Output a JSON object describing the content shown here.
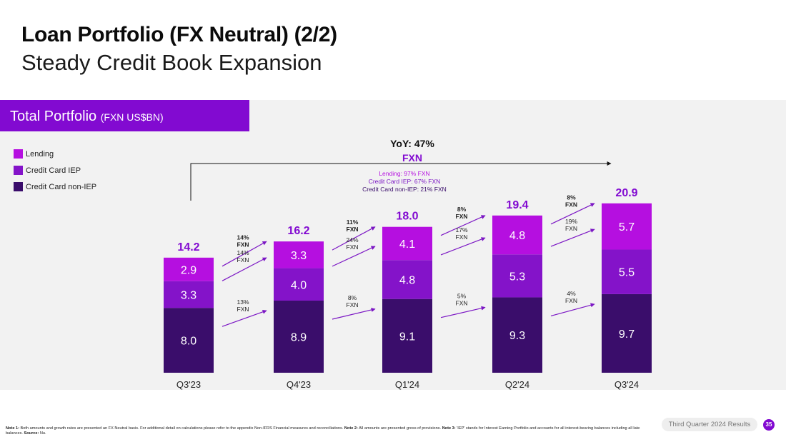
{
  "header": {
    "title": "Loan Portfolio (FX Neutral) (2/2)",
    "subtitle": "Steady Credit Book Expansion"
  },
  "panel": {
    "title": "Total Portfolio",
    "title_unit": "(FXN US$BN)"
  },
  "colors": {
    "brand": "#820ad1",
    "lending": "#b50fe0",
    "credit_card_iep": "#8413c9",
    "credit_card_non_iep": "#3a0d6b",
    "total_label": "#820ad1"
  },
  "legend": [
    {
      "label": "Lending",
      "color": "#b50fe0"
    },
    {
      "label": "Credit Card IEP",
      "color": "#8413c9"
    },
    {
      "label": "Credit Card non-IEP",
      "color": "#3a0d6b"
    }
  ],
  "chart_data": {
    "type": "bar",
    "stacked": true,
    "title": "Total Portfolio (FXN US$BN)",
    "categories": [
      "Q3'23",
      "Q4'23",
      "Q1'24",
      "Q2'24",
      "Q3'24"
    ],
    "series": [
      {
        "name": "Credit Card non-IEP",
        "values": [
          8.0,
          8.9,
          9.1,
          9.3,
          9.7
        ]
      },
      {
        "name": "Credit Card IEP",
        "values": [
          3.3,
          4.0,
          4.8,
          5.3,
          5.5
        ]
      },
      {
        "name": "Lending",
        "values": [
          2.9,
          3.3,
          4.1,
          4.8,
          5.7
        ]
      }
    ],
    "totals": [
      "14.2",
      "16.2",
      "18.0",
      "19.4",
      "20.9"
    ],
    "segment_labels": [
      [
        "8.0",
        "3.3",
        "2.9"
      ],
      [
        "8.9",
        "4.0",
        "3.3"
      ],
      [
        "9.1",
        "4.8",
        "4.1"
      ],
      [
        "9.3",
        "5.3",
        "4.8"
      ],
      [
        "9.7",
        "5.5",
        "5.7"
      ]
    ],
    "growth": [
      {
        "total": [
          "14%",
          "FXN"
        ],
        "lending": [
          "14%",
          "FXN"
        ],
        "iep": null,
        "non_iep": [
          "13%",
          "FXN"
        ]
      },
      {
        "total": [
          "11%",
          "FXN"
        ],
        "lending": [
          "24%",
          "FXN"
        ],
        "iep": null,
        "non_iep": [
          "8%",
          "FXN"
        ]
      },
      {
        "total": [
          "8%",
          "FXN"
        ],
        "lending": [
          "17%",
          "FXN"
        ],
        "iep": null,
        "non_iep": [
          "5%",
          "FXN"
        ]
      },
      {
        "total": [
          "8%",
          "FXN"
        ],
        "lending": [
          "19%",
          "FXN"
        ],
        "iep": null,
        "non_iep": [
          "4%",
          "FXN"
        ]
      }
    ],
    "yoy": {
      "label": "YoY: 47%",
      "sub": "FXN",
      "details": [
        "Lending: 97% FXN",
        "Credit Card IEP: 67% FXN",
        "Credit Card non-IEP: 21% FXN"
      ]
    }
  },
  "footer": {
    "note1_label": "Note 1:",
    "note1": " Both amounts and growth rates are presented an FX Neutral basis. For additional detail on calculations please refer to the appendix Non-IFRS Financial measures and reconciliations. ",
    "note2_label": "Note 2:",
    "note2": " All amounts are presented gross of provisions. ",
    "note3_label": "Note 3:",
    "note3": " 'IEP' stands for Interest Earning Portfolio and accounts for all interest-bearing balances including all late balances. ",
    "source_label": "Source:",
    "source": " Nu.",
    "badge": "Third Quarter 2024 Results",
    "page": "35"
  }
}
